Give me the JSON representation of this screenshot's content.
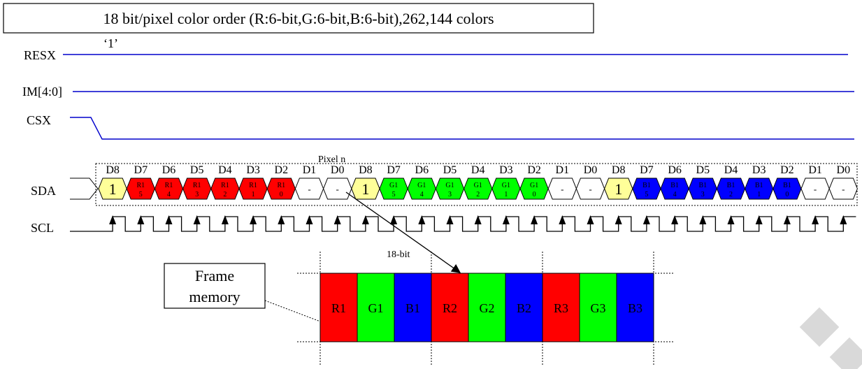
{
  "title": "18 bit/pixel color order (R:6-bit,G:6-bit,B:6-bit),262,144 colors",
  "signals": {
    "resx": "RESX",
    "resx_level": "‘1’",
    "im": "IM[4:0]",
    "csx": "CSX",
    "sda": "SDA",
    "scl": "SCL"
  },
  "pixel_label": "Pixel n",
  "bit_labels": [
    "D8",
    "D7",
    "D6",
    "D5",
    "D4",
    "D3",
    "D2",
    "D1",
    "D0",
    "D8",
    "D7",
    "D6",
    "D5",
    "D4",
    "D3",
    "D2",
    "D1",
    "D0",
    "D8",
    "D7",
    "D6",
    "D5",
    "D4",
    "D3",
    "D2",
    "D1",
    "D0"
  ],
  "sda_cells": [
    {
      "top": "1",
      "bottom": "",
      "color": "#ffff99"
    },
    {
      "top": "R1",
      "bottom": "5",
      "color": "#ff0000"
    },
    {
      "top": "R1",
      "bottom": "4",
      "color": "#ff0000"
    },
    {
      "top": "R1",
      "bottom": "3",
      "color": "#ff0000"
    },
    {
      "top": "R1",
      "bottom": "2",
      "color": "#ff0000"
    },
    {
      "top": "R1",
      "bottom": "1",
      "color": "#ff0000"
    },
    {
      "top": "R1",
      "bottom": "0",
      "color": "#ff0000"
    },
    {
      "top": "-",
      "bottom": "",
      "color": "#ffffff"
    },
    {
      "top": "-",
      "bottom": "",
      "color": "#ffffff"
    },
    {
      "top": "1",
      "bottom": "",
      "color": "#ffff99"
    },
    {
      "top": "G1",
      "bottom": "5",
      "color": "#00ff00"
    },
    {
      "top": "G1",
      "bottom": "4",
      "color": "#00ff00"
    },
    {
      "top": "G1",
      "bottom": "3",
      "color": "#00ff00"
    },
    {
      "top": "G1",
      "bottom": "2",
      "color": "#00ff00"
    },
    {
      "top": "G1",
      "bottom": "1",
      "color": "#00ff00"
    },
    {
      "top": "G1",
      "bottom": "0",
      "color": "#00ff00"
    },
    {
      "top": "-",
      "bottom": "",
      "color": "#ffffff"
    },
    {
      "top": "-",
      "bottom": "",
      "color": "#ffffff"
    },
    {
      "top": "1",
      "bottom": "",
      "color": "#ffff99"
    },
    {
      "top": "B1",
      "bottom": "5",
      "color": "#0000ff"
    },
    {
      "top": "B1",
      "bottom": "4",
      "color": "#0000ff"
    },
    {
      "top": "B1",
      "bottom": "3",
      "color": "#0000ff"
    },
    {
      "top": "B1",
      "bottom": "2",
      "color": "#0000ff"
    },
    {
      "top": "B1",
      "bottom": "1",
      "color": "#0000ff"
    },
    {
      "top": "B1",
      "bottom": "0",
      "color": "#0000ff"
    },
    {
      "top": "-",
      "bottom": "",
      "color": "#ffffff"
    },
    {
      "top": "-",
      "bottom": "",
      "color": "#ffffff"
    }
  ],
  "arrow_label": "18-bit",
  "frame_memory_label": [
    "Frame",
    "memory"
  ],
  "frame_cells": [
    {
      "label": "R1",
      "color": "#ff0000"
    },
    {
      "label": "G1",
      "color": "#00ff00"
    },
    {
      "label": "B1",
      "color": "#0000ff"
    },
    {
      "label": "R2",
      "color": "#ff0000"
    },
    {
      "label": "G2",
      "color": "#00ff00"
    },
    {
      "label": "B2",
      "color": "#0000ff"
    },
    {
      "label": "R3",
      "color": "#ff0000"
    },
    {
      "label": "G3",
      "color": "#00ff00"
    },
    {
      "label": "B3",
      "color": "#0000ff"
    }
  ],
  "colors": {
    "signal_line": "#0000cc",
    "outline": "#000000",
    "text_on_dark": "#ff0000",
    "watermark": "#d9d9d9"
  }
}
